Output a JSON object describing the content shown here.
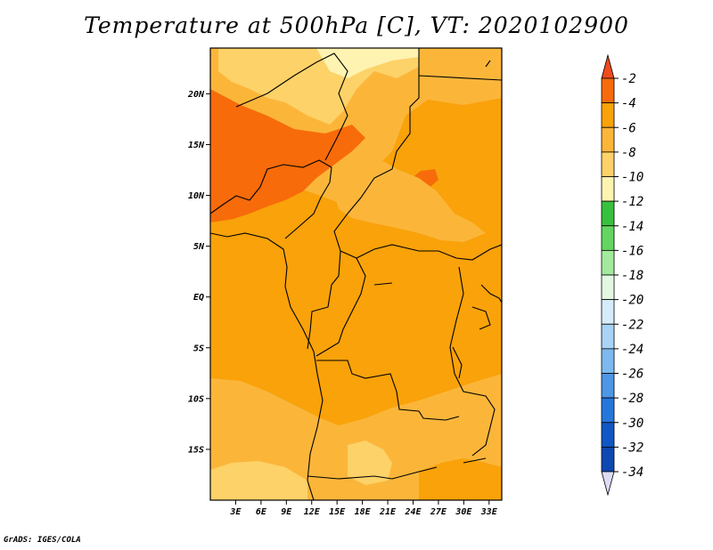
{
  "title": "Temperature at 500hPa [C], VT: 2020102900",
  "footer": "GrADS: IGES/COLA",
  "map": {
    "lat_range": [
      -20,
      24.5
    ],
    "lon_range": [
      0,
      34.5
    ],
    "lat_ticks": [
      {
        "value": 20,
        "label": "20N"
      },
      {
        "value": 15,
        "label": "15N"
      },
      {
        "value": 10,
        "label": "10N"
      },
      {
        "value": 5,
        "label": "5N"
      },
      {
        "value": 0,
        "label": "EQ"
      },
      {
        "value": -5,
        "label": "5S"
      },
      {
        "value": -10,
        "label": "10S"
      },
      {
        "value": -15,
        "label": "15S"
      }
    ],
    "lon_ticks": [
      {
        "value": 3,
        "label": "3E"
      },
      {
        "value": 6,
        "label": "6E"
      },
      {
        "value": 9,
        "label": "9E"
      },
      {
        "value": 12,
        "label": "12E"
      },
      {
        "value": 15,
        "label": "15E"
      },
      {
        "value": 18,
        "label": "18E"
      },
      {
        "value": 21,
        "label": "21E"
      },
      {
        "value": 24,
        "label": "24E"
      },
      {
        "value": 27,
        "label": "27E"
      },
      {
        "value": 30,
        "label": "30E"
      },
      {
        "value": 33,
        "label": "33E"
      }
    ]
  },
  "colorbar": {
    "labels": [
      "-2",
      "-4",
      "-6",
      "-8",
      "-10",
      "-12",
      "-14",
      "-16",
      "-18",
      "-20",
      "-22",
      "-24",
      "-26",
      "-28",
      "-30",
      "-32",
      "-34"
    ],
    "colors": [
      "#f04a1e",
      "#f76b0a",
      "#f9a20a",
      "#fbb63a",
      "#fdd268",
      "#fef3b0",
      "#37c13f",
      "#62d660",
      "#a3ea9d",
      "#e3f8e3",
      "#d6ecfb",
      "#a9d3f5",
      "#7db9ee",
      "#4d97e5",
      "#2577dc",
      "#1057c5",
      "#0d48b2",
      "#0a1a7a",
      "#dcdcf4"
    ]
  }
}
